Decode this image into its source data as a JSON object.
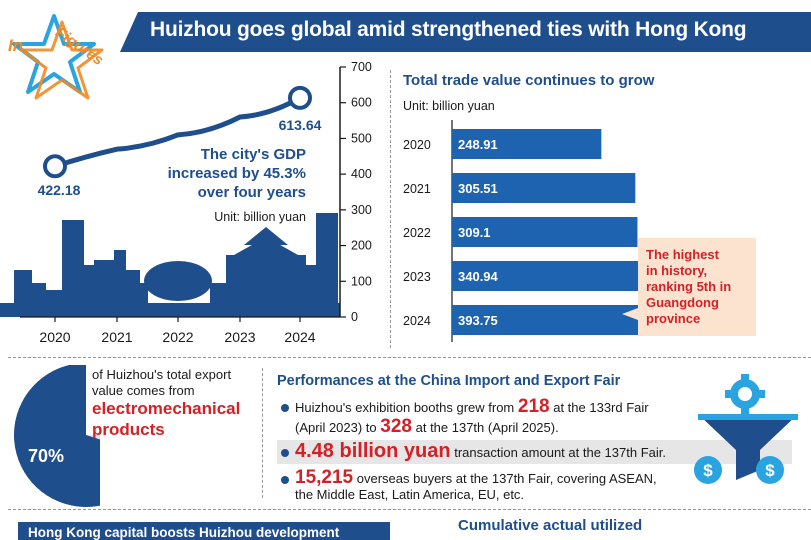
{
  "header": {
    "badge_line1": "In",
    "badge_line2": "Figures",
    "title": "Huizhou goes global amid strengthened ties with Hong Kong"
  },
  "gdp": {
    "start_value": "422.18",
    "end_value": "613.64",
    "caption_line1": "The city's GDP",
    "caption_line2": "increased by 45.3%",
    "caption_line3": "over four years",
    "unit": "Unit: billion yuan"
  },
  "trade": {
    "title": "Total trade value continues to grow",
    "unit": "Unit: billion yuan",
    "callout_line1": "The highest",
    "callout_line2": "in history,",
    "callout_line3": "ranking 5th in",
    "callout_line4": "Guangdong",
    "callout_line5": "province"
  },
  "export": {
    "percent": "70%",
    "line1": "of Huizhou's total export",
    "line2": "value comes from",
    "highlight1": "electromechanical",
    "highlight2": "products"
  },
  "fair": {
    "title": "Performances at the China Import and Export Fair",
    "b1_pre": "Huizhou's exhibition booths grew from",
    "b1_num1": "218",
    "b1_mid": "at the 133rd Fair",
    "b1_line2_pre": "(April 2023) to",
    "b1_num2": "328",
    "b1_line2_post": "at the 137th (April 2025).",
    "b2_num": "4.48 billion yuan",
    "b2_text": "transaction amount at the 137th Fair.",
    "b3_num": "15,215",
    "b3_text": "overseas buyers at the 137th Fair, covering ASEAN,",
    "b3_line2": "the Middle East, Latin America, EU, etc."
  },
  "footer": {
    "left_title": "Hong Kong capital boosts Huizhou development",
    "right_title": "Cumulative actual utilized"
  },
  "icons": [
    "star-icon",
    "funnel-icon",
    "gear-icon",
    "dollar-coin-icon",
    "skyline-illustration"
  ],
  "colors": {
    "navy": "#1f4e8c",
    "bar_blue": "#1d63b0",
    "red": "#d42027",
    "callout_bg": "#fce3cf"
  },
  "chart_data": [
    {
      "type": "line",
      "x": [
        "2020",
        "2021",
        "2022",
        "2023",
        "2024"
      ],
      "series": [
        {
          "values": [
            422.18,
            470,
            510,
            560,
            613.64
          ]
        }
      ],
      "yticks": [
        0,
        100,
        200,
        300,
        400,
        500,
        600,
        700
      ],
      "ylim": [
        0,
        700
      ],
      "point_labels": [
        "422.18",
        "613.64"
      ]
    },
    {
      "type": "bar",
      "orientation": "horizontal",
      "categories": [
        "2020",
        "2021",
        "2022",
        "2023",
        "2024"
      ],
      "values": [
        248.91,
        305.51,
        309.1,
        340.94,
        393.75
      ],
      "value_labels": [
        "248.91",
        "305.51",
        "309.1",
        "340.94",
        "393.75"
      ]
    },
    {
      "type": "pie",
      "values": [
        70,
        30
      ],
      "label": "70%"
    }
  ]
}
